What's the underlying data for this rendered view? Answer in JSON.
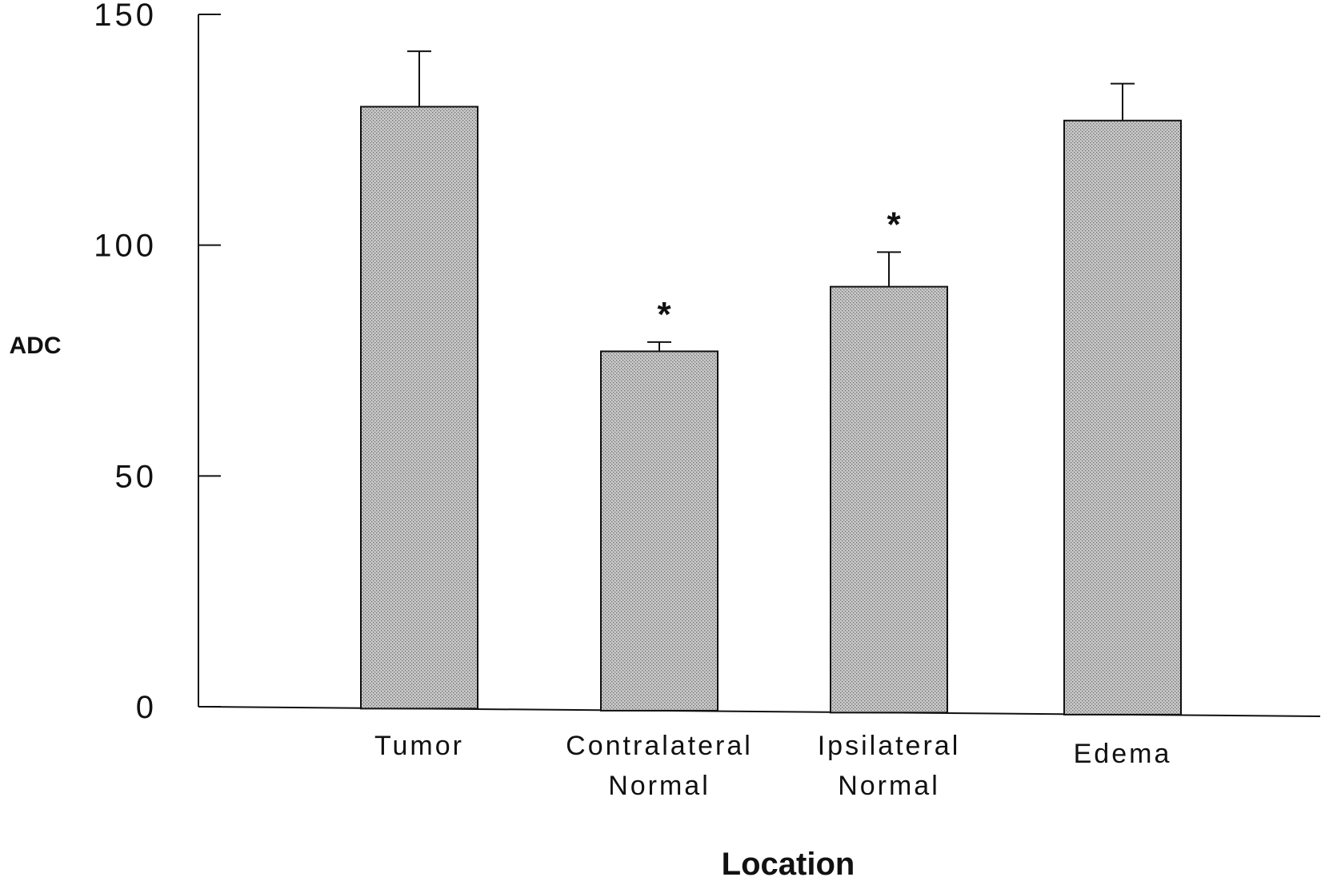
{
  "chart_data": {
    "type": "bar",
    "title": "",
    "xlabel": "Location",
    "ylabel": "ADC",
    "ylim": [
      0,
      150
    ],
    "yticks": [
      0,
      50,
      100,
      150
    ],
    "grid": false,
    "categories": [
      [
        "Tumor"
      ],
      [
        "Contralateral",
        "Normal"
      ],
      [
        "Ipsilateral",
        "Normal"
      ],
      [
        "Edema"
      ]
    ],
    "series": [
      {
        "values": [
          130,
          77,
          91,
          127
        ],
        "error": [
          12,
          2,
          7.5,
          8
        ]
      }
    ],
    "significance": [
      "",
      "*",
      "*",
      ""
    ],
    "colors": {
      "bar_fill": "#c8c8c8",
      "bar_dot": "#6e6e6e",
      "stroke": "#111111"
    }
  }
}
